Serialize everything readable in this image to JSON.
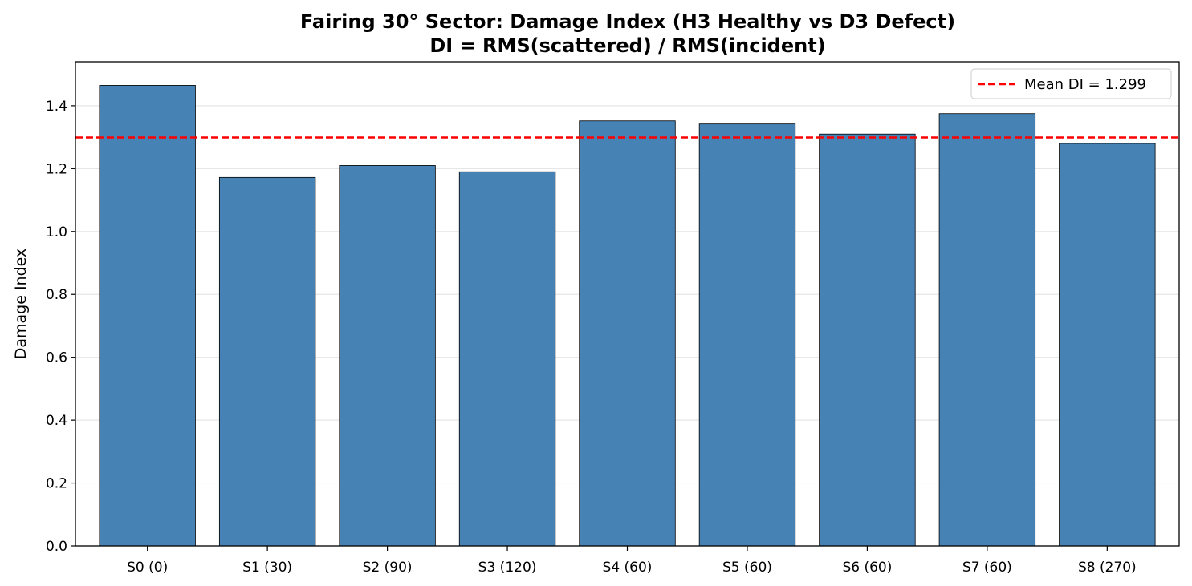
{
  "chart_data": {
    "type": "bar",
    "title": "Fairing 30° Sector: Damage Index (H3 Healthy vs D3 Defect)",
    "subtitle": "DI = RMS(scattered) / RMS(incident)",
    "xlabel": "",
    "ylabel": "Damage Index",
    "categories": [
      "S0 (0)",
      "S1 (30)",
      "S2 (90)",
      "S3 (120)",
      "S4 (60)",
      "S5 (60)",
      "S6 (60)",
      "S7 (60)",
      "S8 (270)"
    ],
    "values": [
      1.465,
      1.172,
      1.21,
      1.19,
      1.352,
      1.342,
      1.31,
      1.375,
      1.28
    ],
    "ylim": [
      0,
      1.54
    ],
    "yticks": [
      "0.0",
      "0.2",
      "0.4",
      "0.6",
      "0.8",
      "1.0",
      "1.2",
      "1.4"
    ],
    "bar_color": "#4682b4",
    "grid": "y",
    "reference_line": {
      "value": 1.299,
      "label": "Mean DI = 1.299",
      "color": "#ff0000",
      "style": "dashed"
    },
    "legend": {
      "placement": "top-right",
      "entries": [
        "Mean DI = 1.299"
      ]
    }
  }
}
